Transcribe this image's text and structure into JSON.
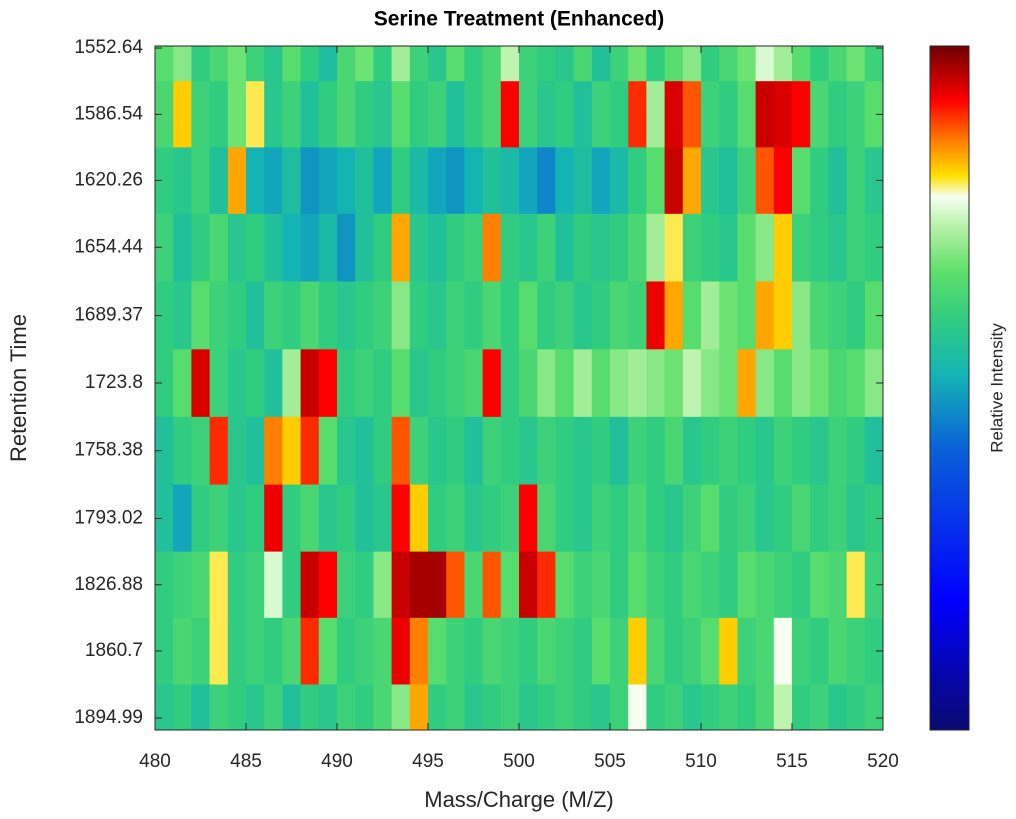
{
  "chart_data": {
    "type": "heatmap",
    "title": "Serine Treatment (Enhanced)",
    "x_label": "Mass/Charge (M/Z)",
    "y_label": "Retention Time",
    "colorbar_label": "Relative Intensity",
    "colormap": "jet-enhanced",
    "xlim": [
      480,
      520
    ],
    "xticks": [
      480,
      485,
      490,
      495,
      500,
      505,
      510,
      515,
      520
    ],
    "ylim": [
      1551.6,
      1901.1
    ],
    "y_reversed": true,
    "yticks": [
      1552.64,
      1586.54,
      1620.26,
      1654.44,
      1689.37,
      1723.8,
      1758.38,
      1793.02,
      1826.88,
      1860.7,
      1894.99
    ],
    "zlim": [
      0,
      1
    ],
    "x": [
      480.5,
      481.5,
      482.5,
      483.5,
      484.5,
      485.5,
      486.5,
      487.5,
      488.5,
      489.5,
      490.5,
      491.5,
      492.5,
      493.5,
      494.5,
      495.5,
      496.5,
      497.5,
      498.5,
      499.5,
      500.5,
      501.5,
      502.5,
      503.5,
      504.5,
      505.5,
      506.5,
      507.5,
      508.5,
      509.5,
      510.5,
      511.5,
      512.5,
      513.5,
      514.5,
      515.5,
      516.5,
      517.5,
      518.5,
      519.5
    ],
    "y": [
      1552.64,
      1586.54,
      1620.26,
      1654.44,
      1689.37,
      1723.8,
      1758.38,
      1793.02,
      1826.88,
      1860.7,
      1894.99
    ],
    "z": [
      [
        0.66,
        0.7,
        0.6,
        0.64,
        0.68,
        0.62,
        0.58,
        0.66,
        0.6,
        0.55,
        0.64,
        0.68,
        0.6,
        0.72,
        0.62,
        0.58,
        0.66,
        0.6,
        0.64,
        0.74,
        0.62,
        0.6,
        0.58,
        0.64,
        0.56,
        0.62,
        0.68,
        0.6,
        0.66,
        0.7,
        0.6,
        0.64,
        0.68,
        0.76,
        0.72,
        0.66,
        0.6,
        0.64,
        0.68,
        0.62
      ],
      [
        0.64,
        0.82,
        0.62,
        0.6,
        0.68,
        0.8,
        0.58,
        0.62,
        0.56,
        0.6,
        0.64,
        0.6,
        0.58,
        0.66,
        0.6,
        0.62,
        0.56,
        0.6,
        0.64,
        0.92,
        0.62,
        0.58,
        0.6,
        0.56,
        0.62,
        0.6,
        0.9,
        0.72,
        0.94,
        0.88,
        0.62,
        0.6,
        0.66,
        0.95,
        0.94,
        0.92,
        0.64,
        0.6,
        0.62,
        0.66
      ],
      [
        0.6,
        0.58,
        0.62,
        0.56,
        0.84,
        0.52,
        0.5,
        0.55,
        0.48,
        0.5,
        0.52,
        0.56,
        0.5,
        0.6,
        0.54,
        0.5,
        0.48,
        0.52,
        0.56,
        0.54,
        0.5,
        0.46,
        0.52,
        0.55,
        0.5,
        0.54,
        0.6,
        0.66,
        0.95,
        0.84,
        0.58,
        0.56,
        0.62,
        0.88,
        0.92,
        0.66,
        0.6,
        0.56,
        0.62,
        0.58
      ],
      [
        0.62,
        0.56,
        0.6,
        0.64,
        0.58,
        0.6,
        0.56,
        0.52,
        0.5,
        0.54,
        0.48,
        0.56,
        0.6,
        0.84,
        0.58,
        0.56,
        0.6,
        0.62,
        0.86,
        0.6,
        0.58,
        0.62,
        0.56,
        0.6,
        0.58,
        0.6,
        0.64,
        0.72,
        0.8,
        0.62,
        0.6,
        0.58,
        0.66,
        0.7,
        0.82,
        0.62,
        0.6,
        0.58,
        0.62,
        0.6
      ],
      [
        0.6,
        0.58,
        0.66,
        0.62,
        0.6,
        0.56,
        0.62,
        0.6,
        0.64,
        0.6,
        0.58,
        0.6,
        0.62,
        0.7,
        0.6,
        0.58,
        0.62,
        0.6,
        0.64,
        0.6,
        0.66,
        0.6,
        0.62,
        0.58,
        0.6,
        0.64,
        0.62,
        0.93,
        0.84,
        0.66,
        0.72,
        0.68,
        0.66,
        0.84,
        0.82,
        0.7,
        0.64,
        0.62,
        0.6,
        0.66
      ],
      [
        0.6,
        0.66,
        0.94,
        0.62,
        0.58,
        0.6,
        0.56,
        0.72,
        0.95,
        0.92,
        0.6,
        0.62,
        0.6,
        0.66,
        0.58,
        0.6,
        0.62,
        0.64,
        0.92,
        0.6,
        0.64,
        0.7,
        0.66,
        0.72,
        0.66,
        0.7,
        0.72,
        0.7,
        0.68,
        0.74,
        0.7,
        0.68,
        0.84,
        0.7,
        0.66,
        0.7,
        0.68,
        0.64,
        0.66,
        0.7
      ],
      [
        0.56,
        0.6,
        0.62,
        0.9,
        0.58,
        0.56,
        0.86,
        0.82,
        0.9,
        0.66,
        0.58,
        0.56,
        0.6,
        0.88,
        0.62,
        0.58,
        0.6,
        0.56,
        0.62,
        0.6,
        0.58,
        0.62,
        0.6,
        0.58,
        0.6,
        0.56,
        0.62,
        0.6,
        0.64,
        0.58,
        0.6,
        0.62,
        0.6,
        0.58,
        0.62,
        0.6,
        0.58,
        0.62,
        0.6,
        0.56
      ],
      [
        0.56,
        0.5,
        0.6,
        0.62,
        0.58,
        0.6,
        0.93,
        0.6,
        0.64,
        0.58,
        0.6,
        0.56,
        0.58,
        0.92,
        0.82,
        0.6,
        0.62,
        0.58,
        0.6,
        0.62,
        0.92,
        0.64,
        0.6,
        0.58,
        0.62,
        0.6,
        0.64,
        0.6,
        0.58,
        0.62,
        0.66,
        0.6,
        0.62,
        0.58,
        0.6,
        0.64,
        0.6,
        0.62,
        0.58,
        0.6
      ],
      [
        0.6,
        0.62,
        0.64,
        0.8,
        0.6,
        0.62,
        0.76,
        0.6,
        0.95,
        0.92,
        0.62,
        0.6,
        0.7,
        0.95,
        0.97,
        0.97,
        0.88,
        0.64,
        0.88,
        0.66,
        0.95,
        0.9,
        0.66,
        0.62,
        0.64,
        0.6,
        0.66,
        0.62,
        0.6,
        0.64,
        0.62,
        0.6,
        0.66,
        0.64,
        0.62,
        0.6,
        0.66,
        0.64,
        0.8,
        0.62
      ],
      [
        0.6,
        0.64,
        0.62,
        0.8,
        0.6,
        0.62,
        0.6,
        0.64,
        0.9,
        0.66,
        0.6,
        0.62,
        0.64,
        0.93,
        0.86,
        0.66,
        0.62,
        0.6,
        0.64,
        0.62,
        0.6,
        0.64,
        0.62,
        0.6,
        0.66,
        0.62,
        0.82,
        0.64,
        0.6,
        0.62,
        0.66,
        0.82,
        0.62,
        0.64,
        0.78,
        0.62,
        0.6,
        0.64,
        0.62,
        0.6
      ],
      [
        0.58,
        0.6,
        0.56,
        0.62,
        0.6,
        0.58,
        0.62,
        0.56,
        0.6,
        0.58,
        0.62,
        0.6,
        0.64,
        0.7,
        0.84,
        0.6,
        0.62,
        0.58,
        0.6,
        0.62,
        0.58,
        0.6,
        0.62,
        0.6,
        0.58,
        0.62,
        0.78,
        0.6,
        0.62,
        0.58,
        0.6,
        0.62,
        0.6,
        0.64,
        0.74,
        0.6,
        0.62,
        0.58,
        0.6,
        0.62
      ]
    ]
  }
}
